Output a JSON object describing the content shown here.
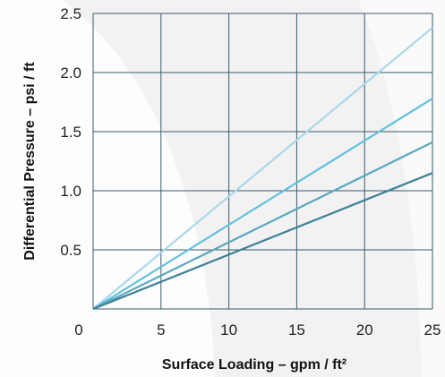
{
  "chart_data": {
    "type": "line",
    "title": "",
    "xlabel": "Surface Loading – gpm / ft²",
    "ylabel": "Differential Pressure – psi / ft",
    "xlim": [
      0,
      25
    ],
    "ylim": [
      0,
      2.5
    ],
    "x_ticks": [
      "0",
      "5",
      "10",
      "15",
      "20",
      "25"
    ],
    "y_ticks": [
      "0.5",
      "1.0",
      "1.5",
      "2.0",
      "2.5"
    ],
    "grid": true,
    "legend": "none",
    "series": [
      {
        "x": [
          0,
          25
        ],
        "y": [
          0,
          2.38
        ],
        "color": "#a9d7e8"
      },
      {
        "x": [
          0,
          25
        ],
        "y": [
          0,
          1.78
        ],
        "color": "#62c0dc"
      },
      {
        "x": [
          0,
          25
        ],
        "y": [
          0,
          1.41
        ],
        "color": "#5aa8bd"
      },
      {
        "x": [
          0,
          25
        ],
        "y": [
          0,
          1.15
        ],
        "color": "#3e8199"
      }
    ],
    "colors": {
      "grid": "#3a5a68",
      "background": "#f2f2f3",
      "watermark": "#ffffff"
    }
  }
}
